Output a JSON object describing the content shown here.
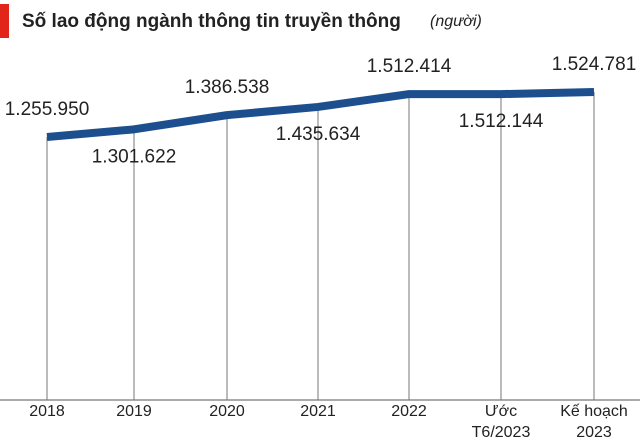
{
  "chart_data": {
    "type": "line",
    "title": "Số lao động ngành thông tin truyền thông",
    "subtitle": "(người)",
    "categories": [
      "2018",
      "2019",
      "2020",
      "2021",
      "2022",
      "Ước T6/2023",
      "Kế hoạch 2023"
    ],
    "series": [
      {
        "name": "Số lao động",
        "color": "#1d4f8f",
        "values": [
          1255950,
          1301622,
          1386538,
          1435634,
          1512414,
          1512144,
          1524781
        ],
        "value_labels": [
          "1.255.950",
          "1.301.622",
          "1.386.538",
          "1.435.634",
          "1.512.414",
          "1.512.144",
          "1.524.781"
        ]
      }
    ]
  }
}
